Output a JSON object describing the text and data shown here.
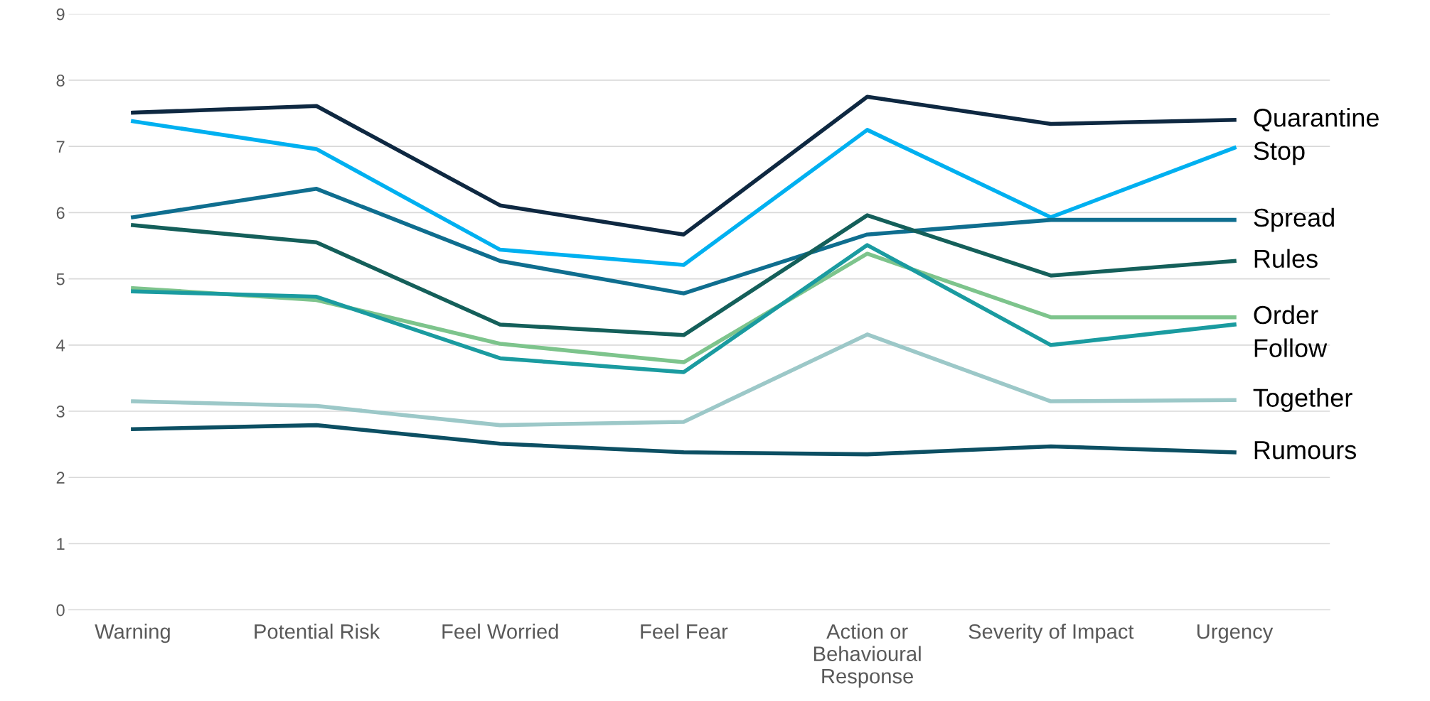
{
  "chart_data": {
    "type": "line",
    "categories": [
      "Warning",
      "Potential Risk",
      "Feel Worried",
      "Feel Fear",
      "Action or\nBehavioural\nResponse",
      "Severity of Impact",
      "Urgency"
    ],
    "ylim": [
      0,
      9
    ],
    "yticks": [
      0,
      1,
      2,
      3,
      4,
      5,
      6,
      7,
      8,
      9
    ],
    "grid": "y",
    "legend": false,
    "marker": "none",
    "series": [
      {
        "name": "Quarantine",
        "color": "#0e2841",
        "values": [
          7.51,
          7.61,
          6.11,
          5.67,
          7.75,
          7.34,
          7.4
        ]
      },
      {
        "name": "Stop",
        "color": "#00b0f0",
        "values": [
          7.38,
          6.96,
          5.44,
          5.21,
          7.25,
          5.93,
          6.98
        ]
      },
      {
        "name": "Spread",
        "color": "#0f6e8f",
        "values": [
          5.93,
          6.36,
          5.27,
          4.78,
          5.67,
          5.89,
          5.89
        ]
      },
      {
        "name": "Rules",
        "color": "#145f5a",
        "values": [
          5.81,
          5.55,
          4.31,
          4.15,
          5.96,
          5.05,
          5.27
        ]
      },
      {
        "name": "Order",
        "color": "#7dc48c",
        "values": [
          4.86,
          4.68,
          4.02,
          3.74,
          5.38,
          4.42,
          4.42
        ]
      },
      {
        "name": "Follow",
        "color": "#1a9ba0",
        "values": [
          4.81,
          4.73,
          3.8,
          3.59,
          5.51,
          4.0,
          4.31
        ]
      },
      {
        "name": "Together",
        "color": "#9cc8c8",
        "values": [
          3.15,
          3.08,
          2.79,
          2.84,
          4.16,
          3.15,
          3.17
        ]
      },
      {
        "name": "Rumours",
        "color": "#0c4f63",
        "values": [
          2.73,
          2.79,
          2.51,
          2.38,
          2.35,
          2.47,
          2.38
        ]
      }
    ]
  }
}
